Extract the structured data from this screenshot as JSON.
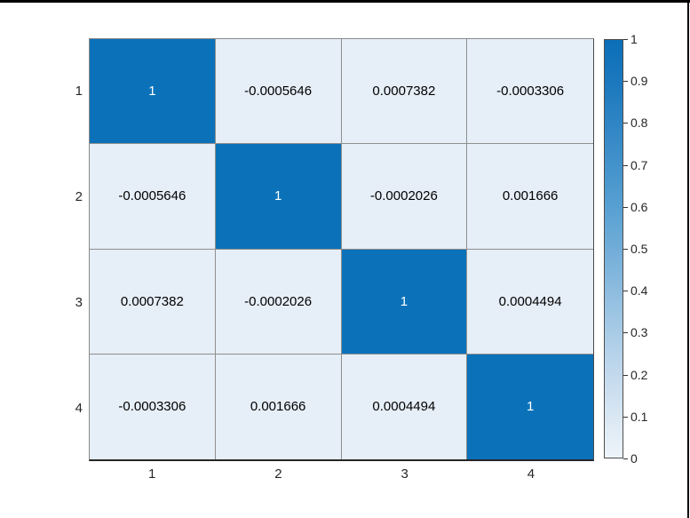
{
  "figure": {
    "background": "#ffffff",
    "frame_border_color": "#000000"
  },
  "chart_data": {
    "type": "heatmap",
    "title": "",
    "xlabel": "",
    "ylabel": "",
    "grid": true,
    "x_labels": [
      "1",
      "2",
      "3",
      "4"
    ],
    "y_labels": [
      "1",
      "2",
      "3",
      "4"
    ],
    "matrix": [
      [
        1,
        -0.0005646,
        0.0007382,
        -0.0003306
      ],
      [
        -0.0005646,
        1,
        -0.0002026,
        0.001666
      ],
      [
        0.0007382,
        -0.0002026,
        1,
        0.0004494
      ],
      [
        -0.0003306,
        0.001666,
        0.0004494,
        1
      ]
    ],
    "cell_labels": [
      [
        "1",
        "-0.0005646",
        "0.0007382",
        "-0.0003306"
      ],
      [
        "-0.0005646",
        "1",
        "-0.0002026",
        "0.001666"
      ],
      [
        "0.0007382",
        "-0.0002026",
        "1",
        "0.0004494"
      ],
      [
        "-0.0003306",
        "0.001666",
        "0.0004494",
        "1"
      ]
    ],
    "colorbar": {
      "position": "right",
      "min": 0,
      "max": 1,
      "tick_labels": [
        "1",
        "0.9",
        "0.8",
        "0.7",
        "0.6",
        "0.5",
        "0.4",
        "0.3",
        "0.2",
        "0.1",
        "0"
      ]
    },
    "colors": {
      "cell_high": "#0b72b9",
      "cell_low": "#e6eef7",
      "text_on_high": "#ffffff",
      "text_on_low": "#000000",
      "grid_line": "#8f8f8f",
      "gradient_stops": [
        "#eef4fa",
        "#d9e7f3",
        "#c2d9ed",
        "#a8cbe6",
        "#8dbcdf",
        "#71add8",
        "#57a0d2",
        "#4392cb",
        "#2f85c4",
        "#1b78bd",
        "#0b6fb8"
      ]
    }
  }
}
